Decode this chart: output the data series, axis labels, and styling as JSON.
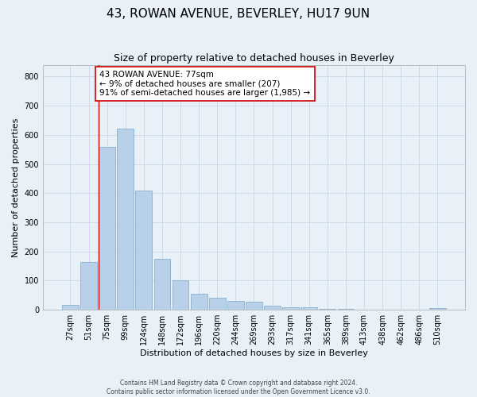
{
  "title": "43, ROWAN AVENUE, BEVERLEY, HU17 9UN",
  "subtitle": "Size of property relative to detached houses in Beverley",
  "xlabel": "Distribution of detached houses by size in Beverley",
  "ylabel": "Number of detached properties",
  "footer_line1": "Contains HM Land Registry data © Crown copyright and database right 2024.",
  "footer_line2": "Contains public sector information licensed under the Open Government Licence v3.0.",
  "bar_labels": [
    "27sqm",
    "51sqm",
    "75sqm",
    "99sqm",
    "124sqm",
    "148sqm",
    "172sqm",
    "196sqm",
    "220sqm",
    "244sqm",
    "269sqm",
    "293sqm",
    "317sqm",
    "341sqm",
    "365sqm",
    "389sqm",
    "413sqm",
    "438sqm",
    "462sqm",
    "486sqm",
    "510sqm"
  ],
  "bar_values": [
    18,
    163,
    560,
    620,
    410,
    175,
    100,
    55,
    42,
    30,
    28,
    14,
    8,
    8,
    2,
    2,
    0,
    0,
    0,
    0,
    5
  ],
  "bar_color": "#b8d0e8",
  "bar_edge_color": "#8ab0cc",
  "annotation_text_line1": "43 ROWAN AVENUE: 77sqm",
  "annotation_text_line2": "← 9% of detached houses are smaller (207)",
  "annotation_text_line3": "91% of semi-detached houses are larger (1,985) →",
  "annotation_box_color": "#ffffff",
  "annotation_box_edge": "#cc0000",
  "vline_color": "#cc0000",
  "vline_x_idx": 2,
  "ylim": [
    0,
    840
  ],
  "yticks": [
    0,
    100,
    200,
    300,
    400,
    500,
    600,
    700,
    800
  ],
  "grid_color": "#ccd8e8",
  "background_color": "#e8f0f8",
  "title_fontsize": 11,
  "subtitle_fontsize": 9,
  "axis_label_fontsize": 8,
  "tick_fontsize": 7,
  "annotation_fontsize": 7.5
}
